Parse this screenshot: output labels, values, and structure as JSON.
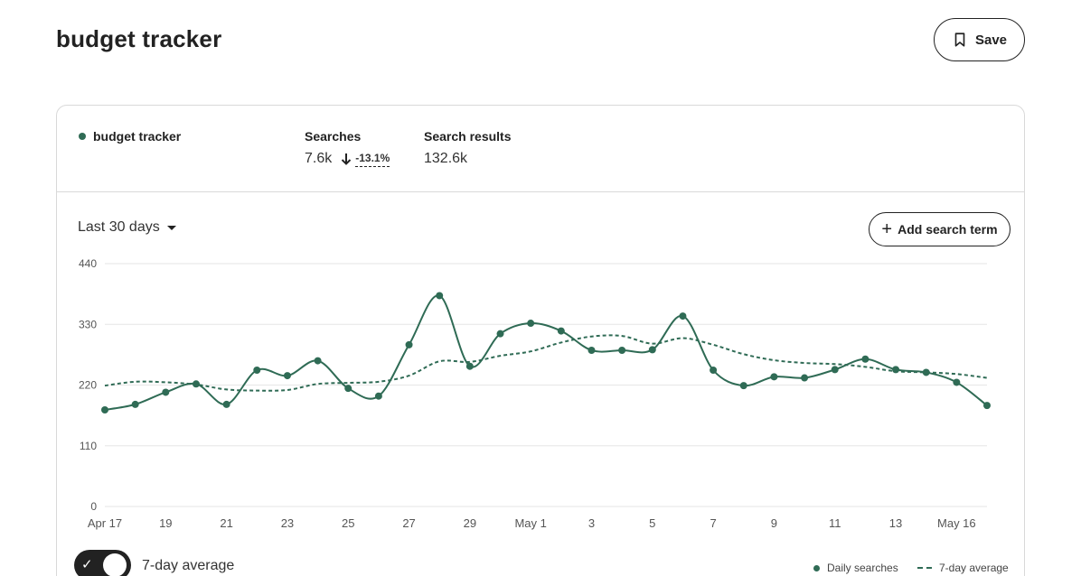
{
  "header": {
    "title": "budget tracker",
    "save_label": "Save"
  },
  "summary": {
    "term": "budget tracker",
    "searches_label": "Searches",
    "searches_value": "7.6k",
    "searches_change": "-13.1%",
    "results_label": "Search results",
    "results_value": "132.6k"
  },
  "controls": {
    "range": "Last 30 days",
    "add_term_label": "Add search term",
    "toggle_label": "7-day average",
    "toggle_on": true
  },
  "legend": {
    "daily": "Daily searches",
    "avg": "7-day average"
  },
  "colors": {
    "series": "#2f6b55",
    "grid": "#e6e6e6",
    "text": "#222222"
  },
  "chart_data": {
    "type": "line",
    "x": [
      "Apr 17",
      "Apr 18",
      "Apr 19",
      "Apr 20",
      "Apr 21",
      "Apr 22",
      "Apr 23",
      "Apr 24",
      "Apr 25",
      "Apr 26",
      "Apr 27",
      "Apr 28",
      "Apr 29",
      "Apr 30",
      "May 1",
      "May 2",
      "May 3",
      "May 4",
      "May 5",
      "May 6",
      "May 7",
      "May 8",
      "May 9",
      "May 10",
      "May 11",
      "May 12",
      "May 13",
      "May 14",
      "May 15",
      "May 16"
    ],
    "x_tick_labels": [
      "Apr 17",
      "19",
      "21",
      "23",
      "25",
      "27",
      "29",
      "May 1",
      "3",
      "5",
      "7",
      "9",
      "11",
      "13",
      "May 16"
    ],
    "y_ticks": [
      440,
      330,
      220,
      110,
      0
    ],
    "ylim": [
      0,
      440
    ],
    "grid": true,
    "series": [
      {
        "name": "Daily searches",
        "style": "solid-with-markers",
        "values": [
          175,
          185,
          207,
          222,
          185,
          247,
          237,
          264,
          214,
          200,
          293,
          382,
          254,
          313,
          332,
          318,
          283,
          283,
          284,
          345,
          247,
          219,
          235,
          233,
          248,
          267,
          248,
          243,
          225,
          183
        ]
      },
      {
        "name": "7-day average",
        "style": "dashed",
        "values": [
          219,
          226,
          225,
          221,
          212,
          210,
          211,
          222,
          224,
          226,
          237,
          263,
          262,
          273,
          281,
          297,
          308,
          309,
          295,
          305,
          293,
          276,
          265,
          260,
          258,
          253,
          245,
          243,
          240,
          233
        ]
      }
    ],
    "legend_position": "bottom-right"
  }
}
